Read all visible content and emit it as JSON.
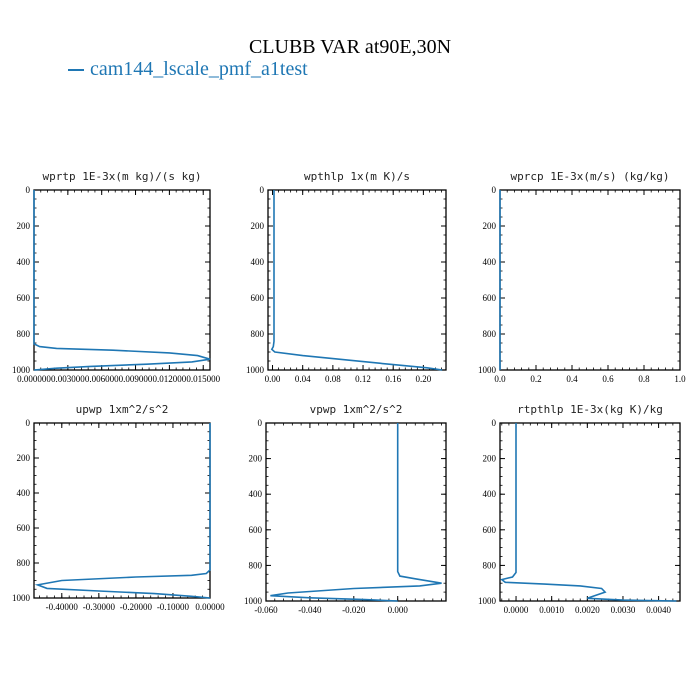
{
  "page": {
    "title": "CLUBB VAR at90E,30N",
    "legend": "cam144_lscale_pmf_a1test",
    "line_color": "#1f77b4"
  },
  "chart_data": [
    {
      "type": "line",
      "title": "wprtp  1E-3x(m kg)/(s kg)",
      "xlim": [
        0.0,
        0.0156
      ],
      "ylim": [
        1000,
        0
      ],
      "xticks": [
        0.0,
        0.003,
        0.006,
        0.009,
        0.012,
        0.015
      ],
      "xtick_labels": [
        "0.000000",
        "0.003000",
        "0.006000",
        "0.009000",
        "0.012000",
        "0.015000"
      ],
      "yticks": [
        0,
        200,
        400,
        600,
        800,
        1000
      ],
      "series": [
        {
          "x": [
            0.0,
            0.0,
            0.0005,
            0.002,
            0.007,
            0.012,
            0.0145,
            0.0156,
            0.014,
            0.01,
            0.005,
            0.002,
            0.0
          ],
          "y": [
            0,
            855,
            870,
            880,
            890,
            905,
            920,
            940,
            955,
            968,
            980,
            990,
            1000
          ]
        }
      ]
    },
    {
      "type": "line",
      "title": "wpthlp  1x(m K)/s",
      "xlim": [
        -0.006,
        0.23
      ],
      "ylim": [
        1000,
        0
      ],
      "xticks": [
        0.0,
        0.04,
        0.08,
        0.12,
        0.16,
        0.2
      ],
      "xtick_labels": [
        "0.00",
        "0.04",
        "0.08",
        "0.12",
        "0.16",
        "0.20"
      ],
      "yticks": [
        0,
        200,
        400,
        600,
        800,
        1000
      ],
      "series": [
        {
          "x": [
            0.002,
            0.002,
            0.001,
            -0.001,
            0.003,
            0.04,
            0.1,
            0.16,
            0.205,
            0.225
          ],
          "y": [
            0,
            840,
            870,
            885,
            900,
            920,
            945,
            970,
            988,
            1000
          ]
        }
      ]
    },
    {
      "type": "line",
      "title": "wprcp  1E-3x(m/s) (kg/kg)",
      "xlim": [
        0.0,
        1.0
      ],
      "ylim": [
        1000,
        0
      ],
      "xticks": [
        0.0,
        0.2,
        0.4,
        0.6,
        0.8,
        1.0
      ],
      "xtick_labels": [
        "0.0",
        "0.2",
        "0.4",
        "0.6",
        "0.8",
        "1.0"
      ],
      "yticks": [
        0,
        200,
        400,
        600,
        800,
        1000
      ],
      "series": [
        {
          "x": [
            0.0,
            0.0
          ],
          "y": [
            0,
            1000
          ]
        }
      ]
    },
    {
      "type": "line",
      "title": "upwp  1xm^2/s^2",
      "xlim": [
        -0.475,
        0.0
      ],
      "ylim": [
        1000,
        0
      ],
      "xticks": [
        -0.4,
        -0.3,
        -0.2,
        -0.1,
        0.0
      ],
      "xtick_labels": [
        "-0.40000",
        "-0.30000",
        "-0.20000",
        "-0.10000",
        "0.00000"
      ],
      "yticks": [
        0,
        200,
        400,
        600,
        800,
        1000
      ],
      "series": [
        {
          "x": [
            0.0,
            0.0,
            -0.01,
            -0.05,
            -0.2,
            -0.4,
            -0.465,
            -0.44,
            -0.3,
            -0.15,
            -0.05,
            0.0
          ],
          "y": [
            0,
            840,
            860,
            870,
            880,
            900,
            925,
            945,
            960,
            975,
            990,
            1000
          ]
        }
      ]
    },
    {
      "type": "line",
      "title": "vpwp  1xm^2/s^2",
      "xlim": [
        -0.06,
        0.022
      ],
      "ylim": [
        1000,
        0
      ],
      "xticks": [
        -0.06,
        -0.04,
        -0.02,
        0.0
      ],
      "xtick_labels": [
        "-0.060",
        "-0.040",
        "-0.020",
        "0.000"
      ],
      "yticks": [
        0,
        200,
        400,
        600,
        800,
        1000
      ],
      "series": [
        {
          "x": [
            0.0,
            0.0,
            0.001,
            0.008,
            0.02,
            0.01,
            -0.02,
            -0.05,
            -0.058,
            -0.04,
            -0.015,
            0.0
          ],
          "y": [
            0,
            835,
            860,
            875,
            900,
            915,
            930,
            955,
            970,
            982,
            992,
            1000
          ]
        }
      ]
    },
    {
      "type": "line",
      "title": "rtpthlp  1E-3x(kg K)/kg",
      "xlim": [
        -0.00045,
        0.0046
      ],
      "ylim": [
        1000,
        0
      ],
      "xticks": [
        0.0,
        0.001,
        0.002,
        0.003,
        0.004
      ],
      "xtick_labels": [
        "0.0000",
        "0.0010",
        "0.0020",
        "0.0030",
        "0.0040"
      ],
      "yticks": [
        0,
        200,
        400,
        600,
        800,
        1000
      ],
      "series": [
        {
          "x": [
            0.0,
            0.0,
            -0.0001,
            -0.0004,
            -0.0003,
            0.0008,
            0.0018,
            0.0024,
            0.0025,
            0.0022,
            0.002,
            0.003,
            0.0045
          ],
          "y": [
            0,
            840,
            865,
            880,
            895,
            905,
            915,
            930,
            950,
            970,
            985,
            995,
            1000
          ]
        }
      ]
    }
  ]
}
